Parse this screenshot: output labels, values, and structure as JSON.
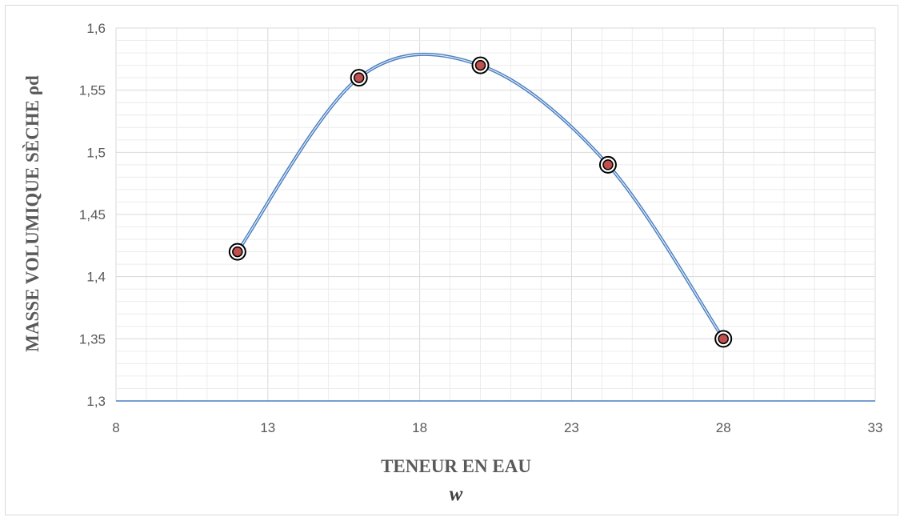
{
  "chart_data": {
    "type": "scatter",
    "xlabel": "TENEUR EN EAU",
    "xlabel_sub": "w",
    "ylabel": "MASSE VOLUMIQUE SÈCHE ρd",
    "xlim": [
      8,
      33
    ],
    "ylim": [
      1.3,
      1.6
    ],
    "x_ticks": [
      "8",
      "13",
      "18",
      "23",
      "28",
      "33"
    ],
    "y_ticks": [
      "1,3",
      "1,35",
      "1,4",
      "1,45",
      "1,5",
      "1,55",
      "1,6"
    ],
    "grid": true,
    "series": [
      {
        "x": [
          12,
          16,
          20,
          24.2,
          28
        ],
        "y": [
          1.42,
          1.56,
          1.57,
          1.49,
          1.35
        ],
        "smooth": true
      }
    ],
    "colors": {
      "line": "#4a7fc1",
      "marker_fill": "#c0504d",
      "marker_ring": "#000000",
      "grid_major": "#d9d9d9",
      "grid_minor": "#ececec"
    }
  }
}
